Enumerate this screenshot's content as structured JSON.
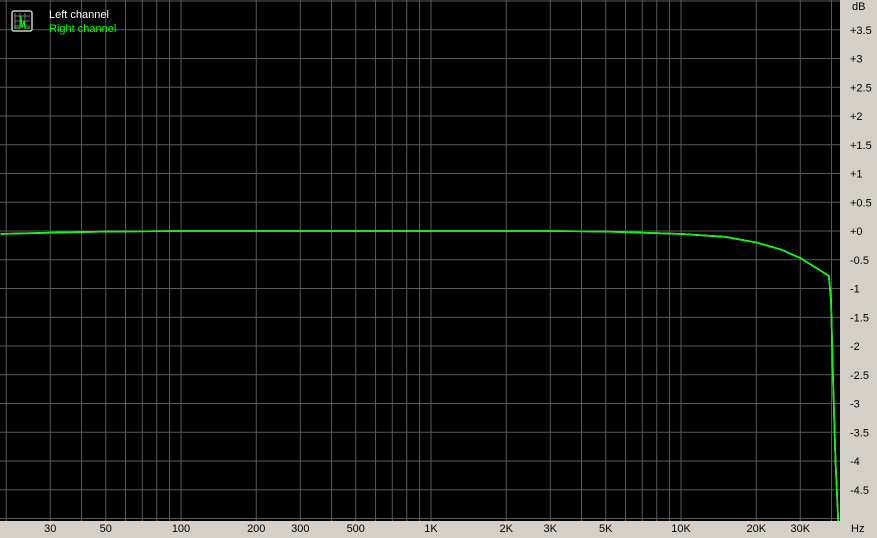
{
  "chart_data": {
    "type": "line",
    "title": "",
    "xlabel": "Hz",
    "ylabel": "dB",
    "x_scale": "log",
    "xlim": [
      19,
      43000
    ],
    "ylim": [
      -5,
      4
    ],
    "grid": true,
    "x_ticks": [
      {
        "v": 30,
        "label": "30"
      },
      {
        "v": 50,
        "label": "50"
      },
      {
        "v": 100,
        "label": "100"
      },
      {
        "v": 200,
        "label": "200"
      },
      {
        "v": 300,
        "label": "300"
      },
      {
        "v": 500,
        "label": "500"
      },
      {
        "v": 1000,
        "label": "1K"
      },
      {
        "v": 2000,
        "label": "2K"
      },
      {
        "v": 3000,
        "label": "3K"
      },
      {
        "v": 5000,
        "label": "5K"
      },
      {
        "v": 10000,
        "label": "10K"
      },
      {
        "v": 20000,
        "label": "20K"
      },
      {
        "v": 30000,
        "label": "30K"
      }
    ],
    "y_ticks": [
      {
        "v": 3.5,
        "label": "+3.5"
      },
      {
        "v": 3,
        "label": "+3"
      },
      {
        "v": 2.5,
        "label": "+2.5"
      },
      {
        "v": 2,
        "label": "+2"
      },
      {
        "v": 1.5,
        "label": "+1.5"
      },
      {
        "v": 1,
        "label": "+1"
      },
      {
        "v": 0.5,
        "label": "+0.5"
      },
      {
        "v": 0,
        "label": "+0"
      },
      {
        "v": -0.5,
        "label": "-0.5"
      },
      {
        "v": -1,
        "label": "-1"
      },
      {
        "v": -1.5,
        "label": "-1.5"
      },
      {
        "v": -2,
        "label": "-2"
      },
      {
        "v": -2.5,
        "label": "-2.5"
      },
      {
        "v": -3,
        "label": "-3"
      },
      {
        "v": -3.5,
        "label": "-3.5"
      },
      {
        "v": -4,
        "label": "-4"
      },
      {
        "v": -4.5,
        "label": "-4.5"
      }
    ],
    "legend_placement": "top-left",
    "series": [
      {
        "name": "Left channel",
        "color": "#ffffff",
        "x": [
          19,
          30,
          50,
          100,
          300,
          1000,
          3000,
          5000,
          7000,
          10000,
          15000,
          20000,
          25000,
          30000,
          35000,
          39000,
          39800,
          40500,
          41500,
          43000
        ],
        "y": [
          -0.05,
          -0.03,
          -0.01,
          0,
          0,
          0,
          0,
          -0.01,
          -0.03,
          -0.05,
          -0.1,
          -0.2,
          -0.32,
          -0.47,
          -0.65,
          -0.78,
          -1.2,
          -2.5,
          -4.0,
          -5.5
        ]
      },
      {
        "name": "Right channel",
        "color": "#00ff00",
        "x": [
          19,
          30,
          50,
          100,
          300,
          1000,
          3000,
          5000,
          7000,
          10000,
          15000,
          20000,
          25000,
          30000,
          35000,
          39000,
          39800,
          40500,
          41500,
          43000
        ],
        "y": [
          -0.05,
          -0.03,
          -0.01,
          0,
          0,
          0,
          0,
          -0.01,
          -0.03,
          -0.05,
          -0.1,
          -0.2,
          -0.32,
          -0.47,
          -0.65,
          -0.78,
          -1.2,
          -2.5,
          -4.0,
          -5.5
        ]
      }
    ]
  }
}
